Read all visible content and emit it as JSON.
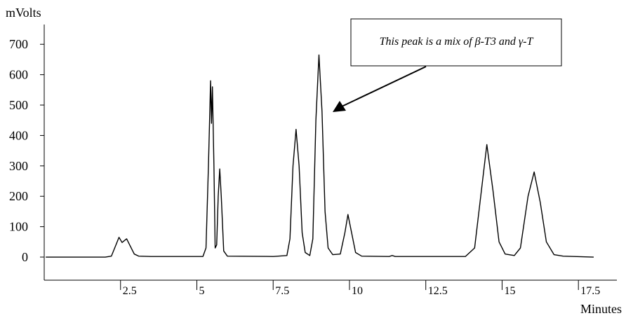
{
  "chart_data": {
    "type": "line",
    "y_label": "mVolts",
    "x_label": "Minutes",
    "annotation": "This peak is a mix of β-T3 and γ-T",
    "xlim": [
      0,
      18.76
    ],
    "ylim": [
      -76,
      765
    ],
    "xticks": [
      2.5,
      5.0,
      7.5,
      10.0,
      12.5,
      15.0,
      17.5
    ],
    "yticks": [
      0,
      100,
      200,
      300,
      400,
      500,
      600,
      700
    ],
    "color": "#000000",
    "x": [
      0.05,
      2.0,
      2.2,
      2.35,
      2.45,
      2.55,
      2.6,
      2.7,
      2.8,
      2.95,
      3.1,
      3.5,
      5.2,
      5.3,
      5.38,
      5.45,
      5.48,
      5.51,
      5.56,
      5.6,
      5.65,
      5.7,
      5.75,
      5.8,
      5.88,
      6.0,
      7.5,
      7.95,
      8.05,
      8.15,
      8.25,
      8.35,
      8.45,
      8.55,
      8.7,
      8.8,
      8.9,
      9.0,
      9.1,
      9.2,
      9.3,
      9.45,
      9.7,
      9.85,
      9.95,
      10.05,
      10.2,
      10.4,
      11.3,
      11.4,
      11.5,
      13.8,
      14.1,
      14.3,
      14.5,
      14.7,
      14.9,
      15.1,
      15.4,
      15.6,
      15.85,
      16.05,
      16.25,
      16.45,
      16.7,
      17.0,
      18.0
    ],
    "values": [
      0,
      0,
      3,
      40,
      65,
      48,
      52,
      60,
      40,
      10,
      3,
      2,
      2,
      30,
      300,
      580,
      440,
      560,
      300,
      30,
      40,
      200,
      290,
      200,
      20,
      3,
      2,
      5,
      60,
      300,
      420,
      300,
      80,
      15,
      5,
      60,
      450,
      665,
      480,
      150,
      30,
      8,
      10,
      80,
      140,
      90,
      15,
      3,
      2,
      5,
      2,
      2,
      30,
      200,
      370,
      220,
      50,
      10,
      5,
      30,
      200,
      280,
      180,
      50,
      8,
      3,
      0
    ]
  }
}
